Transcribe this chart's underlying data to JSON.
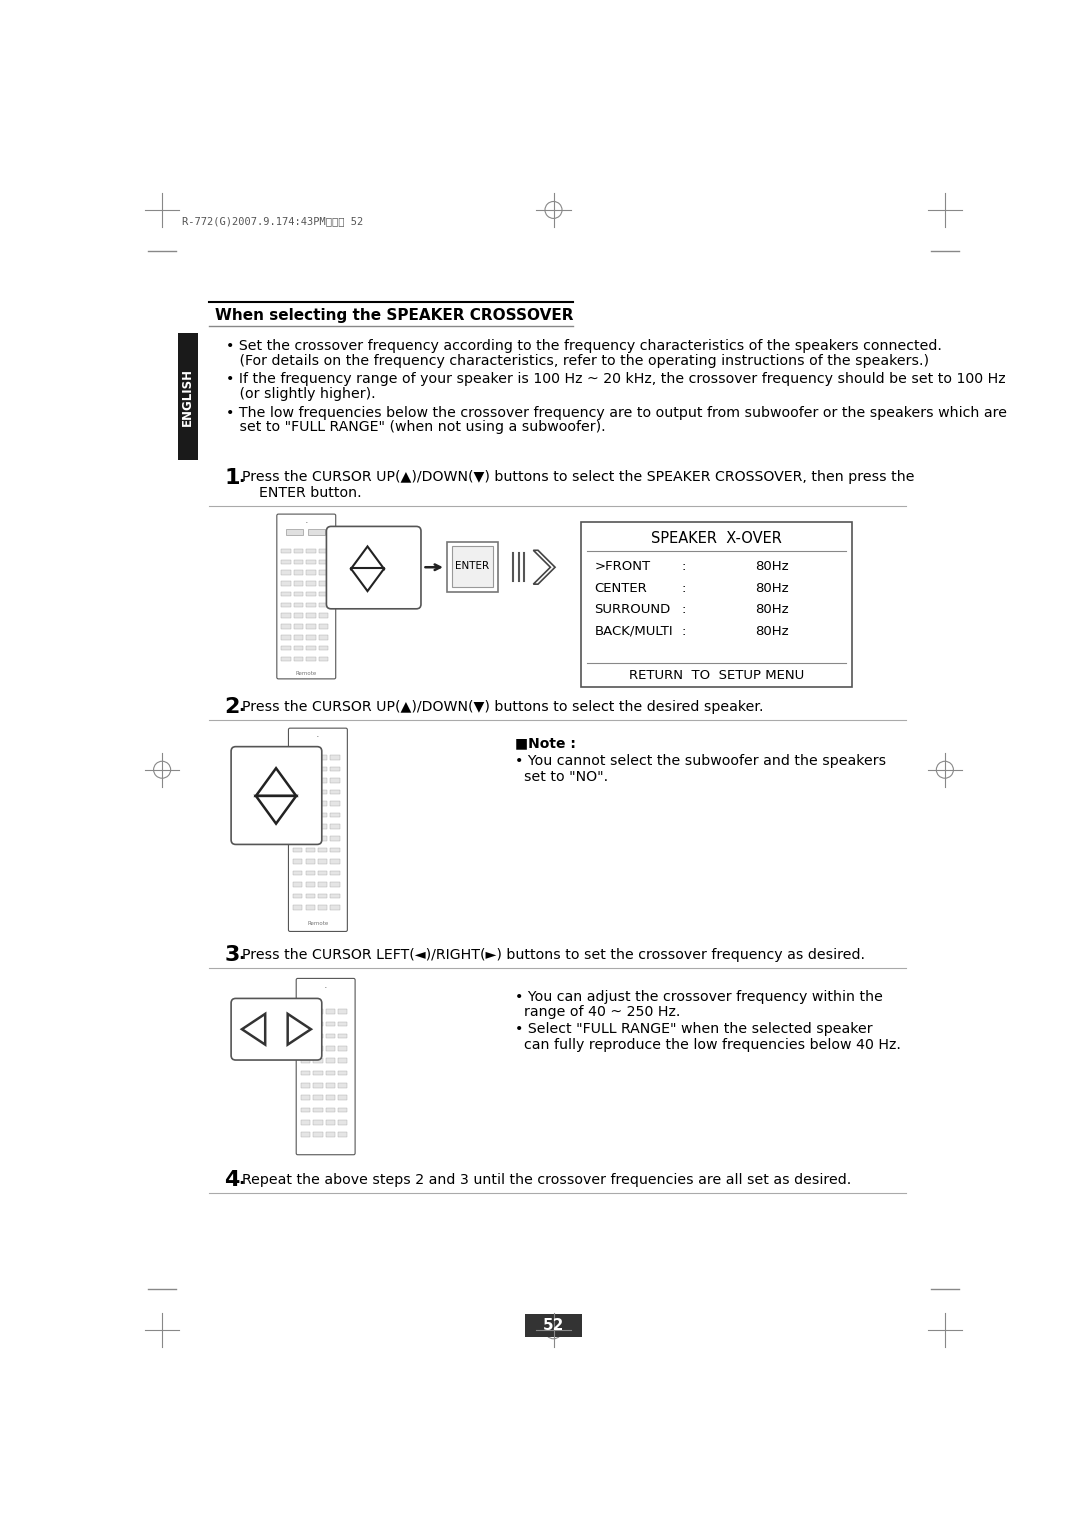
{
  "bg_color": "#ffffff",
  "page_header": "R-772(G)2007.9.174:43PM페이지 52",
  "section_title": "When selecting the SPEAKER CROSSOVER",
  "bullet1_line1": "• Set the crossover frequency according to the frequency characteristics of the speakers connected.",
  "bullet1_line2": "   (For details on the frequency characteristics, refer to the operating instructions of the speakers.)",
  "bullet2_line1": "• If the frequency range of your speaker is 100 Hz ~ 20 kHz, the crossover frequency should be set to 100 Hz",
  "bullet2_line2": "   (or slightly higher).",
  "bullet3_line1": "• The low frequencies below the crossover frequency are to output from subwoofer or the speakers which are",
  "bullet3_line2": "   set to \"FULL RANGE\" (when not using a subwoofer).",
  "step1_num": "1.",
  "step1_text_a": "Press the CURSOR UP(▲)/DOWN(▼) buttons to select the SPEAKER CROSSOVER, then press the",
  "step1_text_b": "ENTER button.",
  "step2_num": "2.",
  "step2_text": "Press the CURSOR UP(▲)/DOWN(▼) buttons to select the desired speaker.",
  "step3_num": "3.",
  "step3_text": "Press the CURSOR LEFT(◄)/RIGHT(►) buttons to set the crossover frequency as desired.",
  "step4_num": "4.",
  "step4_text": "Repeat the above steps 2 and 3 until the crossover frequencies are all set as desired.",
  "xover_title": "SPEAKER  X-OVER",
  "xover_entries": [
    [
      ">FRONT",
      ":",
      "80Hz"
    ],
    [
      "CENTER",
      ":",
      "80Hz"
    ],
    [
      "SURROUND",
      ":",
      "80Hz"
    ],
    [
      "BACK/MULTI",
      ":",
      "80Hz"
    ]
  ],
  "xover_footer": "RETURN  TO  SETUP MENU",
  "note_title": "■Note :",
  "note_line1": "• You cannot select the subwoofer and the speakers",
  "note_line2": "  set to \"NO\".",
  "step3_note1": "• You can adjust the crossover frequency within the",
  "step3_note2": "  range of 40 ~ 250 Hz.",
  "step3_note3": "• Select \"FULL RANGE\" when the selected speaker",
  "step3_note4": "  can fully reproduce the low frequencies below 40 Hz.",
  "page_num": "52",
  "english_label": "ENGLISH",
  "text_color": "#000000",
  "gray_color": "#888888",
  "light_gray": "#cccccc",
  "dark_color": "#1a1a1a"
}
